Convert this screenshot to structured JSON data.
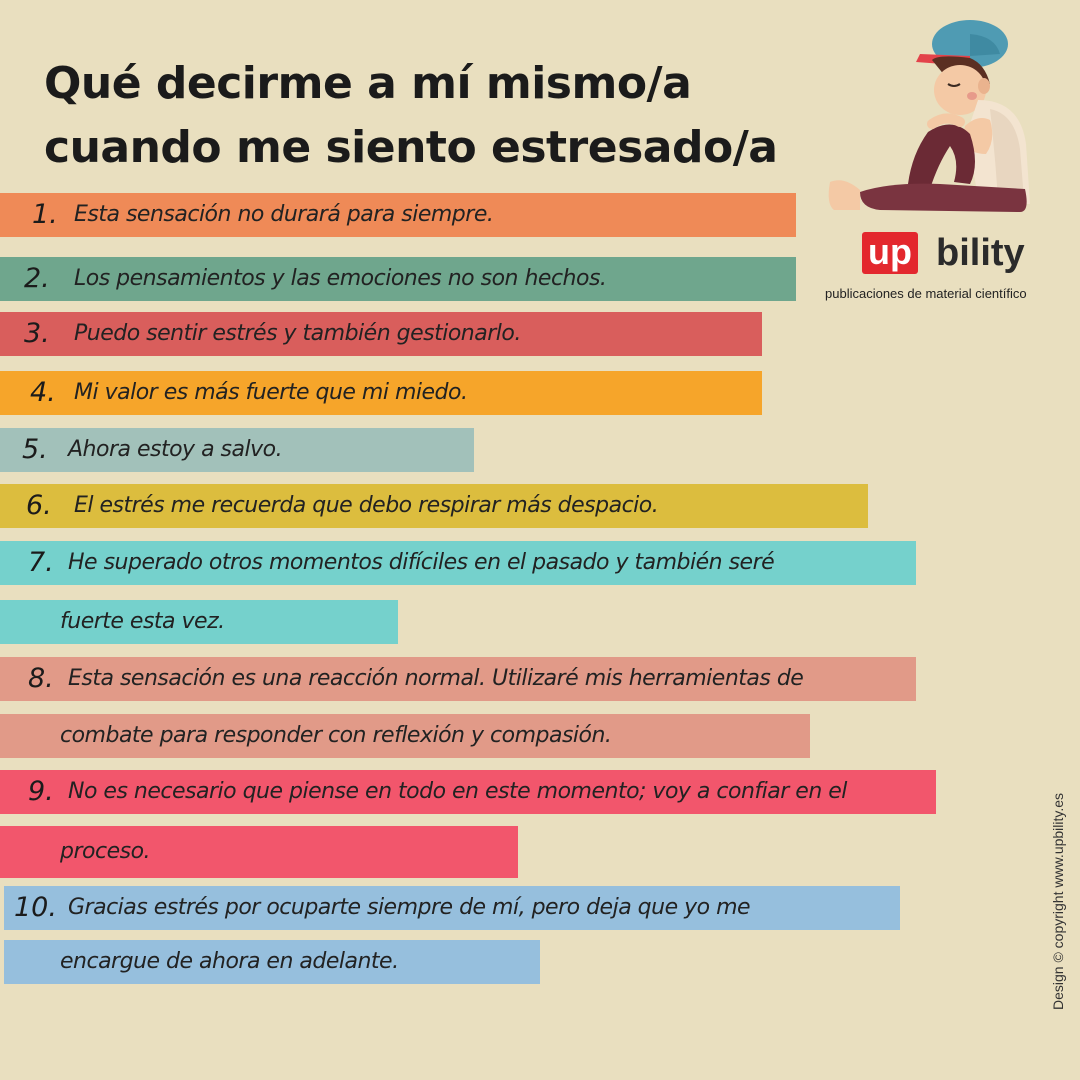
{
  "title": {
    "line1": "Qué decirme a mí mismo/a",
    "line2": "cuando me siento estresado/a"
  },
  "brand": {
    "logo_up": "up",
    "logo_rest": "bility",
    "tagline": "publicaciones de material científico",
    "logo_color": "#e3282e"
  },
  "illustration": "sad-boy-sitting-icon",
  "copyright": "Design © copyright www.upbility.es",
  "items": [
    {
      "num": "1.",
      "line1": "Esta sensación no durará para siempre.",
      "line2": "",
      "color": "#ef8a57"
    },
    {
      "num": "2.",
      "line1": "Los pensamientos y las emociones no son hechos.",
      "line2": "",
      "color": "#6fa68d"
    },
    {
      "num": "3.",
      "line1": "Puedo sentir estrés y también gestionarlo.",
      "line2": "",
      "color": "#d95e5c"
    },
    {
      "num": "4.",
      "line1": "Mi valor es más fuerte que mi miedo.",
      "line2": "",
      "color": "#f6a52a"
    },
    {
      "num": "5.",
      "line1": "Ahora estoy a salvo.",
      "line2": "",
      "color": "#a2c1ba"
    },
    {
      "num": "6.",
      "line1": "El estrés me recuerda que debo respirar más despacio.",
      "line2": "",
      "color": "#dcbd3e"
    },
    {
      "num": "7.",
      "line1": "He superado otros momentos difíciles en el pasado y también seré",
      "line2": "fuerte esta vez.",
      "color": "#75d1cc"
    },
    {
      "num": "8.",
      "line1": "Esta sensación es una reacción normal. Utilizaré mis herramientas de",
      "line2": "combate para responder con reflexión y compasión.",
      "color": "#e19a88"
    },
    {
      "num": "9.",
      "line1": "No es necesario que piense en todo en este momento; voy a confiar en el",
      "line2": "proceso.",
      "color": "#f2566c"
    },
    {
      "num": "10.",
      "line1": "Gracias estrés por ocuparte siempre de mí, pero deja que yo me",
      "line2": "encargue de ahora en adelante.",
      "color": "#96bfdd"
    }
  ]
}
